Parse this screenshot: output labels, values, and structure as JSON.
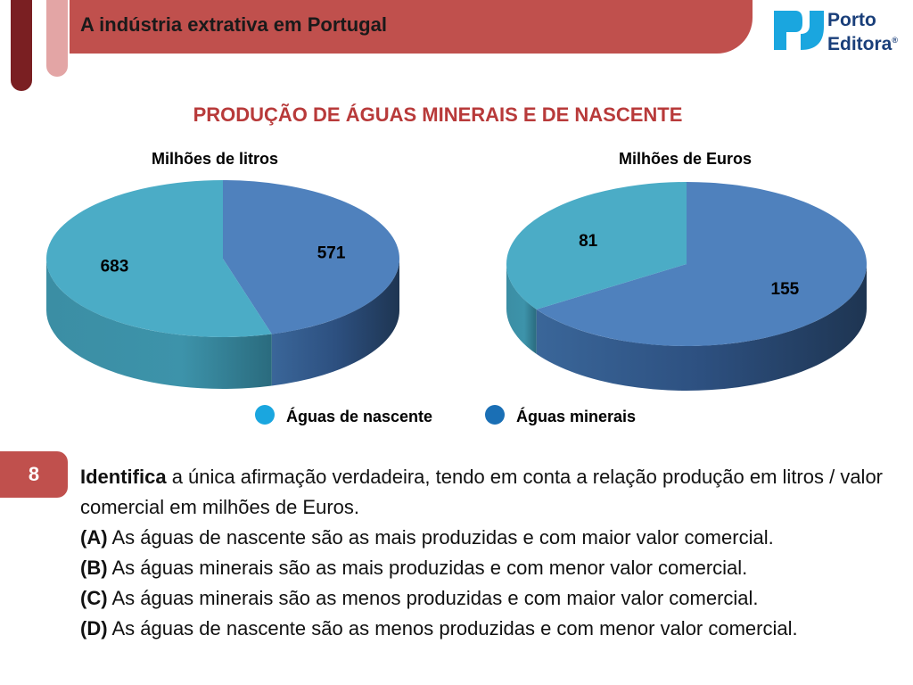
{
  "header": {
    "title": "A indústria extrativa em Portugal",
    "logo_line1": "Porto",
    "logo_line2": "Editora",
    "logo_mark": "®"
  },
  "main_title": "PRODUÇÃO DE ÁGUAS MINERAIS E DE NASCENTE",
  "colors": {
    "brand_red": "#c0504d",
    "aguas_nascente": "#4bacc6",
    "aguas_minerais": "#4f81bd"
  },
  "chart_data": [
    {
      "type": "pie",
      "title": "Milhões de litros",
      "categories": [
        "Águas de nascente",
        "Águas minerais"
      ],
      "values": [
        683,
        571
      ]
    },
    {
      "type": "pie",
      "title": "Milhões de Euros",
      "categories": [
        "Águas de nascente",
        "Águas minerais"
      ],
      "values": [
        81,
        155
      ]
    }
  ],
  "legend": [
    {
      "label": "Águas de nascente",
      "color": "#1aa6df"
    },
    {
      "label": "Águas minerais",
      "color": "#1a6fb5"
    }
  ],
  "question": {
    "number": "8",
    "lead_bold": "Identifica",
    "lead_text": " a única afirmação verdadeira, tendo em conta a relação produção em litros / valor comercial em milhões de Euros.",
    "options": [
      {
        "letter": "(A)",
        "text": " As águas de nascente são as mais produzidas e com maior valor comercial."
      },
      {
        "letter": "(B)",
        "text": " As águas minerais são as mais produzidas e com menor valor comercial."
      },
      {
        "letter": "(C)",
        "text": " As águas minerais são as menos produzidas e com maior valor comercial."
      },
      {
        "letter": "(D)",
        "text": " As águas de nascente são as menos produzidas e com menor valor comercial."
      }
    ]
  }
}
